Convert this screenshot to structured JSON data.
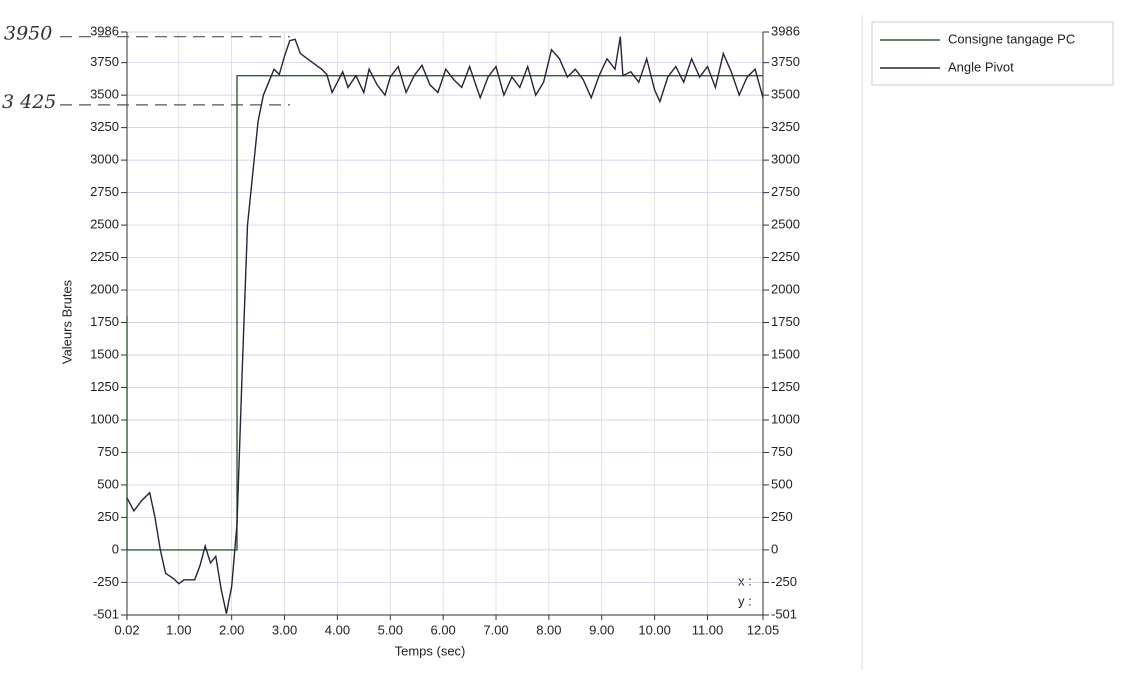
{
  "chart_data": {
    "type": "line",
    "xlabel": "Temps (sec)",
    "ylabel": "Valeurs Brutes",
    "xlim": [
      0.02,
      12.05
    ],
    "ylim": [
      -501,
      3986
    ],
    "xticks": [
      0.02,
      {
        "value": 1,
        "label": "1.00"
      },
      {
        "value": 2,
        "label": "2.00"
      },
      {
        "value": 3,
        "label": "3.00"
      },
      {
        "value": 4,
        "label": "4.00"
      },
      {
        "value": 5,
        "label": "5.00"
      },
      {
        "value": 6,
        "label": "6.00"
      },
      {
        "value": 7,
        "label": "7.00"
      },
      {
        "value": 8,
        "label": "8.00"
      },
      {
        "value": 9,
        "label": "9.00"
      },
      {
        "value": 10,
        "label": "10.00"
      },
      {
        "value": 11,
        "label": "11.00"
      },
      12.05
    ],
    "yticks": [
      -501,
      -250,
      0,
      250,
      500,
      750,
      1000,
      1250,
      1500,
      1750,
      2000,
      2250,
      2500,
      2750,
      3000,
      3250,
      3500,
      3750,
      3986
    ],
    "grid": true,
    "legend": "outside-right",
    "cursor_labels": [
      "x :",
      "y :"
    ],
    "annotations": [
      {
        "label": "3950",
        "value": 3950
      },
      {
        "label": "3 425",
        "value": 3425
      }
    ],
    "series": [
      {
        "name": "Consigne tangage PC",
        "color": "#2f5e3a",
        "x": [
          0.02,
          0.02,
          2.1,
          2.1,
          12.05
        ],
        "values": [
          1800,
          0,
          0,
          3650,
          3650
        ]
      },
      {
        "name": "Angle Pivot",
        "color": "#2a2238",
        "x": [
          0.02,
          0.15,
          0.3,
          0.45,
          0.55,
          0.65,
          0.75,
          0.9,
          1.0,
          1.1,
          1.3,
          1.4,
          1.5,
          1.6,
          1.7,
          1.8,
          1.9,
          2.0,
          2.1,
          2.2,
          2.3,
          2.4,
          2.5,
          2.6,
          2.7,
          2.8,
          2.9,
          3.0,
          3.1,
          3.2,
          3.3,
          3.5,
          3.7,
          3.8,
          3.9,
          4.0,
          4.1,
          4.2,
          4.35,
          4.5,
          4.6,
          4.75,
          4.9,
          5.0,
          5.15,
          5.3,
          5.45,
          5.6,
          5.75,
          5.9,
          6.05,
          6.2,
          6.35,
          6.5,
          6.7,
          6.85,
          7.0,
          7.15,
          7.3,
          7.45,
          7.6,
          7.75,
          7.9,
          8.05,
          8.2,
          8.35,
          8.5,
          8.65,
          8.8,
          8.95,
          9.1,
          9.25,
          9.35,
          9.4,
          9.55,
          9.7,
          9.85,
          10.0,
          10.1,
          10.25,
          10.4,
          10.55,
          10.7,
          10.85,
          11.0,
          11.15,
          11.3,
          11.45,
          11.6,
          11.75,
          11.9,
          12.05
        ],
        "values": [
          400,
          300,
          380,
          440,
          250,
          0,
          -180,
          -220,
          -260,
          -230,
          -230,
          -120,
          30,
          -100,
          -50,
          -300,
          -490,
          -280,
          200,
          1400,
          2500,
          2900,
          3300,
          3500,
          3600,
          3700,
          3660,
          3800,
          3920,
          3930,
          3820,
          3760,
          3700,
          3660,
          3520,
          3600,
          3680,
          3560,
          3650,
          3520,
          3700,
          3580,
          3500,
          3640,
          3720,
          3520,
          3650,
          3730,
          3580,
          3520,
          3700,
          3620,
          3560,
          3720,
          3480,
          3640,
          3720,
          3500,
          3640,
          3560,
          3720,
          3500,
          3600,
          3850,
          3780,
          3640,
          3700,
          3620,
          3480,
          3650,
          3780,
          3700,
          3950,
          3650,
          3680,
          3600,
          3780,
          3540,
          3450,
          3640,
          3720,
          3600,
          3780,
          3640,
          3720,
          3560,
          3820,
          3680,
          3500,
          3640,
          3700,
          3480
        ]
      }
    ]
  }
}
